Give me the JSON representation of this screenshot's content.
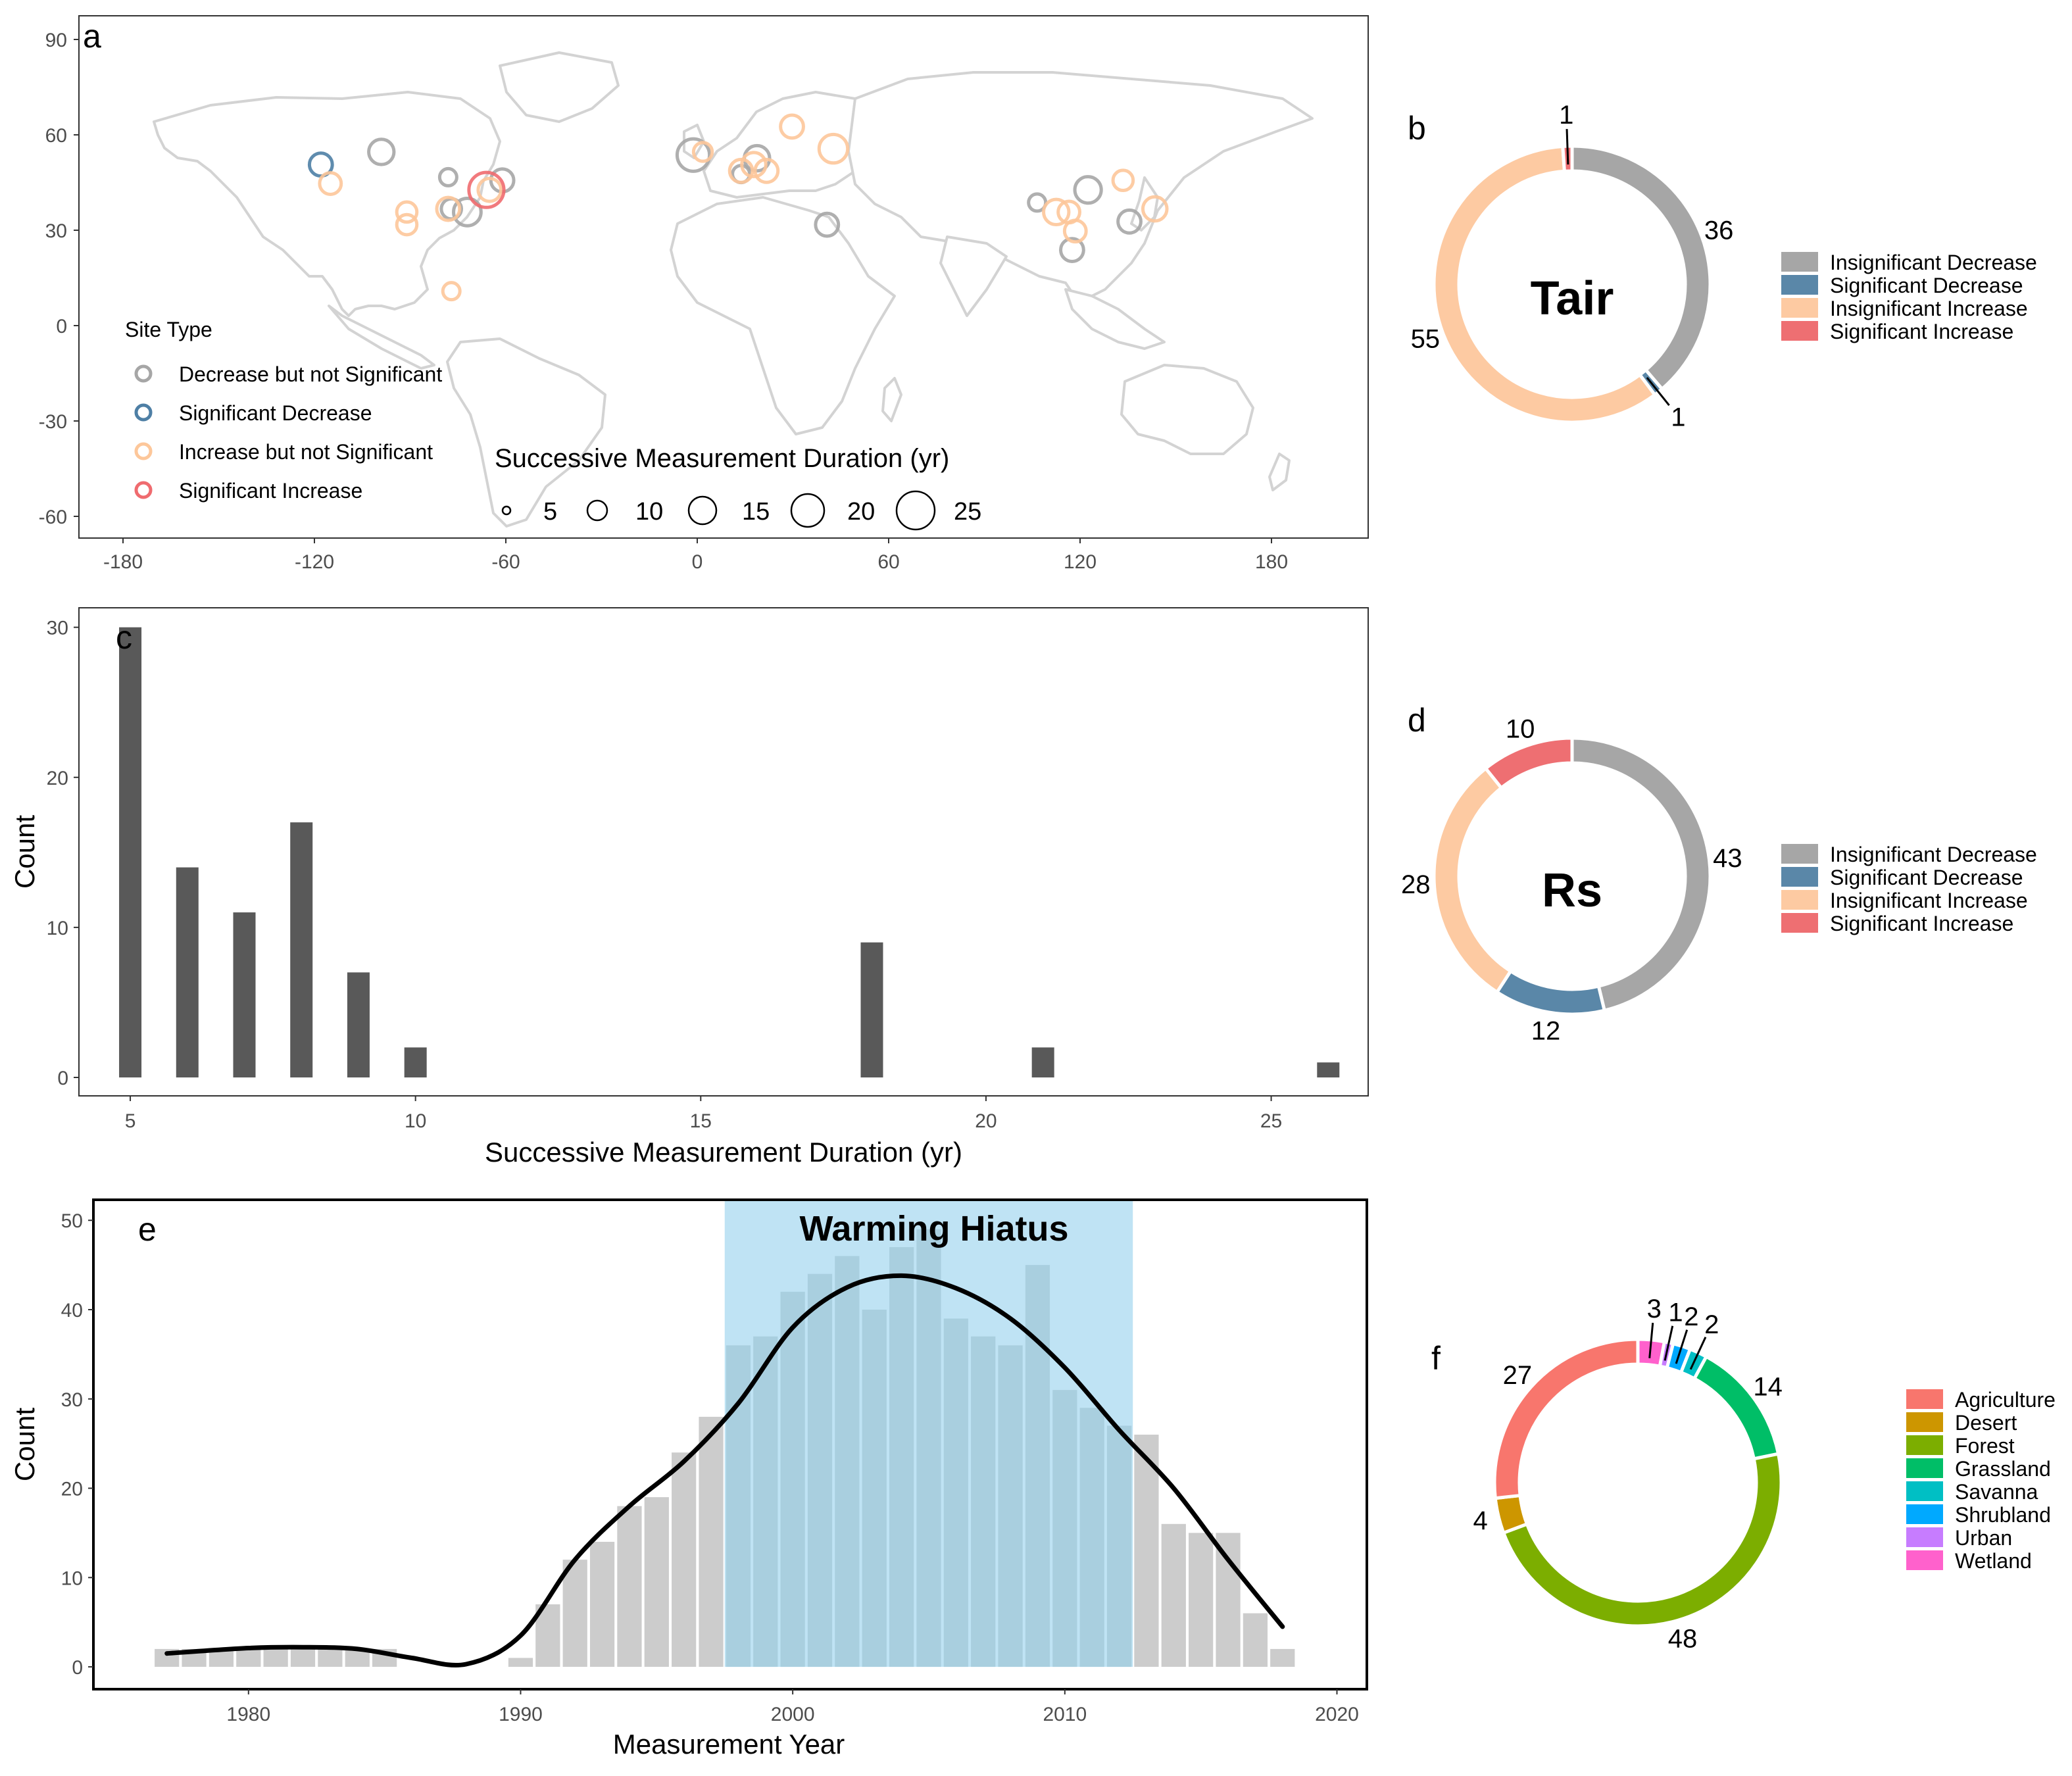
{
  "panels": {
    "a": {
      "label": "a",
      "x_ticks": [
        -180,
        -120,
        -60,
        0,
        60,
        120,
        180
      ],
      "y_ticks": [
        90,
        60,
        30,
        0,
        -30,
        -60
      ],
      "site_legend": {
        "title": "Site Type",
        "items": [
          {
            "label": "Decrease but not Significant",
            "color": "#a6a6a6"
          },
          {
            "label": "Significant Decrease",
            "color": "#4e7fa5"
          },
          {
            "label": "Increase but not Significant",
            "color": "#fdc79a"
          },
          {
            "label": "Significant Increase",
            "color": "#ef6b6f"
          }
        ]
      },
      "size_legend": {
        "title": "Successive Measurement Duration (yr)",
        "items": [
          5,
          10,
          15,
          20,
          25
        ]
      }
    },
    "c": {
      "label": "c",
      "xlabel": "Successive Measurement Duration (yr)",
      "ylabel": "Count",
      "x_ticks": [
        5,
        10,
        15,
        20,
        25
      ],
      "y_ticks": [
        0,
        10,
        20,
        30
      ]
    },
    "e": {
      "label": "e",
      "xlabel": "Measurement Year",
      "ylabel": "Count",
      "x_ticks": [
        1980,
        1990,
        2000,
        2010,
        2020
      ],
      "y_ticks": [
        0,
        10,
        20,
        30,
        40,
        50
      ],
      "band_label": "Warming Hiatus"
    },
    "b": {
      "label": "b",
      "center": "Tair"
    },
    "d": {
      "label": "d",
      "center": "Rs"
    },
    "f": {
      "label": "f"
    }
  },
  "trend_legend": [
    {
      "label": "Insignificant Decrease",
      "color": "#a6a6a6"
    },
    {
      "label": "Significant Decrease",
      "color": "#5a87a8"
    },
    {
      "label": "Insignificant Increase",
      "color": "#fdcaa2"
    },
    {
      "label": "Significant Increase",
      "color": "#ee6f72"
    }
  ],
  "landcover_legend": [
    {
      "label": "Agriculture",
      "color": "#f8766d"
    },
    {
      "label": "Desert",
      "color": "#cd9600"
    },
    {
      "label": "Forest",
      "color": "#7cae00"
    },
    {
      "label": "Grassland",
      "color": "#00be67"
    },
    {
      "label": "Savanna",
      "color": "#00bfc4"
    },
    {
      "label": "Shrubland",
      "color": "#00a9ff"
    },
    {
      "label": "Urban",
      "color": "#c77cff"
    },
    {
      "label": "Wetland",
      "color": "#ff61cc"
    }
  ],
  "chart_data": [
    {
      "panel": "a",
      "type": "scatter",
      "xlim": [
        -200,
        205
      ],
      "ylim": [
        -68,
        97
      ],
      "series": [
        {
          "name": "Decrease but not Significant",
          "points": [
            {
              "lon": -105,
              "lat": 54,
              "dur": 11
            },
            {
              "lon": -84,
              "lat": 46,
              "dur": 5
            },
            {
              "lon": -83,
              "lat": 36,
              "dur": 7
            },
            {
              "lon": -78,
              "lat": 35,
              "dur": 13
            },
            {
              "lon": -67,
              "lat": 45,
              "dur": 9
            },
            {
              "lon": -7,
              "lat": 53,
              "dur": 18
            },
            {
              "lon": 8,
              "lat": 47,
              "dur": 5
            },
            {
              "lon": 13,
              "lat": 52,
              "dur": 11
            },
            {
              "lon": 35,
              "lat": 31,
              "dur": 9
            },
            {
              "lon": 101,
              "lat": 38,
              "dur": 5
            },
            {
              "lon": 117,
              "lat": 42,
              "dur": 12
            },
            {
              "lon": 112,
              "lat": 23,
              "dur": 9
            },
            {
              "lon": 130,
              "lat": 32,
              "dur": 9
            }
          ]
        },
        {
          "name": "Significant Decrease",
          "points": [
            {
              "lon": -124,
              "lat": 50,
              "dur": 9
            }
          ]
        },
        {
          "name": "Increase but not Significant",
          "points": [
            {
              "lon": -121,
              "lat": 44,
              "dur": 8
            },
            {
              "lon": -97,
              "lat": 35,
              "dur": 7
            },
            {
              "lon": -97,
              "lat": 31,
              "dur": 7
            },
            {
              "lon": -84,
              "lat": 36,
              "dur": 9
            },
            {
              "lon": -71,
              "lat": 42,
              "dur": 9
            },
            {
              "lon": -83,
              "lat": 10,
              "dur": 5
            },
            {
              "lon": -4,
              "lat": 54,
              "dur": 6
            },
            {
              "lon": 8,
              "lat": 48,
              "dur": 9
            },
            {
              "lon": 12,
              "lat": 50,
              "dur": 10
            },
            {
              "lon": 16,
              "lat": 48,
              "dur": 9
            },
            {
              "lon": 24,
              "lat": 62,
              "dur": 9
            },
            {
              "lon": 37,
              "lat": 55,
              "dur": 14
            },
            {
              "lon": 107,
              "lat": 35,
              "dur": 11
            },
            {
              "lon": 111,
              "lat": 35,
              "dur": 8
            },
            {
              "lon": 113,
              "lat": 29,
              "dur": 8
            },
            {
              "lon": 128,
              "lat": 45,
              "dur": 7
            },
            {
              "lon": 138,
              "lat": 36,
              "dur": 10
            }
          ]
        },
        {
          "name": "Significant Increase",
          "points": [
            {
              "lon": -72,
              "lat": 42,
              "dur": 21
            }
          ]
        }
      ]
    },
    {
      "panel": "b",
      "type": "pie",
      "hole": true,
      "categories": [
        "Insignificant Decrease",
        "Significant Decrease",
        "Insignificant Increase",
        "Significant Increase"
      ],
      "values": [
        36,
        1,
        55,
        1
      ],
      "labels": [
        "36",
        "1",
        "55",
        "1"
      ]
    },
    {
      "panel": "c",
      "type": "bar",
      "xlabel": "Successive Measurement Duration (yr)",
      "ylabel": "Count",
      "xlim": [
        4.1,
        26.7
      ],
      "ylim": [
        0,
        31.3
      ],
      "x": [
        5,
        6,
        7,
        8,
        9,
        10,
        18,
        21,
        26
      ],
      "values": [
        30,
        14,
        11,
        17,
        7,
        2,
        9,
        2,
        1
      ]
    },
    {
      "panel": "d",
      "type": "pie",
      "hole": true,
      "categories": [
        "Insignificant Decrease",
        "Significant Decrease",
        "Insignificant Increase",
        "Significant Increase"
      ],
      "values": [
        43,
        12,
        28,
        10
      ],
      "labels": [
        "43",
        "12",
        "28",
        "10"
      ]
    },
    {
      "panel": "e",
      "type": "bar",
      "xlabel": "Measurement Year",
      "ylabel": "Count",
      "xlim": [
        1974.3,
        2021.1
      ],
      "ylim": [
        -2.5,
        52.3
      ],
      "x": [
        1977,
        1978,
        1979,
        1980,
        1981,
        1982,
        1983,
        1984,
        1985,
        1986,
        1987,
        1988,
        1989,
        1990,
        1991,
        1992,
        1993,
        1994,
        1995,
        1996,
        1997,
        1998,
        1999,
        2000,
        2001,
        2002,
        2003,
        2004,
        2005,
        2006,
        2007,
        2008,
        2009,
        2010,
        2011,
        2012,
        2013,
        2014,
        2015,
        2016,
        2017,
        2018
      ],
      "values": [
        2,
        2,
        2,
        2,
        2,
        2,
        2,
        2,
        2,
        0,
        0,
        0,
        0,
        1,
        7,
        12,
        14,
        18,
        19,
        24,
        28,
        36,
        37,
        42,
        44,
        46,
        40,
        47,
        49,
        39,
        37,
        36,
        45,
        31,
        29,
        27,
        26,
        16,
        15,
        15,
        6,
        2
      ],
      "shaded_range": [
        1998,
        2012
      ],
      "smooth": {
        "x": [
          1977,
          1980,
          1982,
          1984,
          1986,
          1988,
          1990,
          1992,
          1994,
          1996,
          1998,
          2000,
          2002,
          2004,
          2006,
          2008,
          2010,
          2012,
          2014,
          2016,
          2018
        ],
        "y": [
          1.5,
          2.1,
          2.2,
          2.0,
          1.0,
          0.3,
          3.5,
          12,
          18,
          23,
          29.5,
          38,
          42.5,
          43.8,
          42.4,
          39,
          33.5,
          26.5,
          20,
          12,
          4.5
        ]
      }
    },
    {
      "panel": "f",
      "type": "pie",
      "hole": true,
      "categories": [
        "Wetland",
        "Urban",
        "Shrubland",
        "Savanna",
        "Grassland",
        "Forest",
        "Desert",
        "Agriculture"
      ],
      "values": [
        3,
        1,
        2,
        2,
        14,
        48,
        4,
        27
      ],
      "labels": [
        "3",
        "1",
        "2",
        "2",
        "14",
        "48",
        "4",
        "27"
      ]
    }
  ]
}
